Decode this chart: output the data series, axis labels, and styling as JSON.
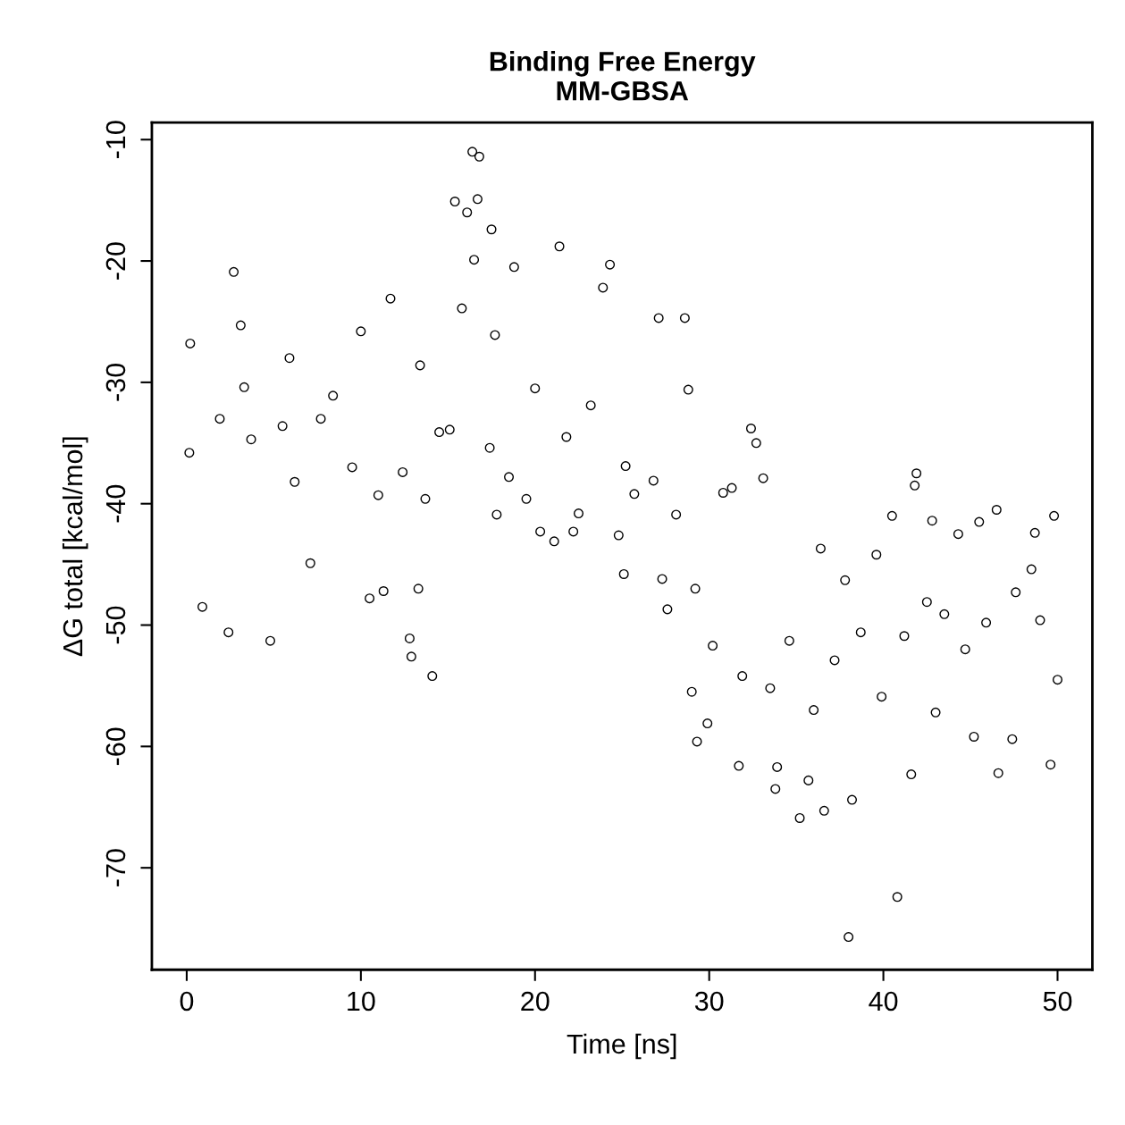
{
  "chart_data": {
    "type": "scatter",
    "title": "Binding Free Energy\nMM-GBSA",
    "xlabel": "Time [ns]",
    "ylabel": "ΔG total [kcal/mol]",
    "xlim": [
      -2,
      52
    ],
    "ylim": [
      -78.4,
      -8.6
    ],
    "xticks": [
      0,
      10,
      20,
      30,
      40,
      50
    ],
    "yticks": [
      -10,
      -20,
      -30,
      -40,
      -50,
      -60,
      -70
    ],
    "grid": false,
    "legend": false,
    "marker": "circle",
    "series": [
      {
        "color": "#000000",
        "x": [
          0.15,
          0.2,
          0.9,
          2.4,
          2.7,
          3.1,
          3.3,
          4.8,
          5.9,
          6.2,
          7.1,
          8.4,
          10.0,
          10.5,
          11.3,
          11.7,
          12.8,
          12.9,
          14.1,
          13.3,
          13.4,
          14.5,
          15.4,
          16.4,
          16.8,
          16.7,
          16.1,
          17.5,
          15.8,
          16.5,
          17.7,
          17.8,
          17.4,
          18.8,
          19.5,
          20.3,
          21.1,
          21.4,
          22.2,
          22.5,
          23.9,
          24.3,
          24.8,
          25.1,
          25.7,
          27.1,
          27.3,
          27.6,
          28.6,
          28.8,
          29.2,
          29.3,
          29.0,
          29.9,
          30.8,
          31.3,
          31.7,
          32.4,
          32.7,
          33.1,
          33.9,
          33.8,
          35.2,
          35.7,
          36.6,
          36.4,
          37.8,
          38.0,
          38.2,
          39.6,
          40.5,
          40.8,
          41.6,
          41.9,
          41.8,
          42.8,
          43.0,
          44.3,
          45.2,
          45.5,
          46.5,
          46.6,
          47.4,
          48.7,
          49.0,
          49.6,
          49.8,
          50.0,
          1.9,
          3.7,
          5.5,
          7.7,
          9.5,
          11.0,
          12.4,
          13.7,
          15.1,
          18.5,
          20.0,
          21.8,
          23.2,
          25.2,
          26.8,
          28.1,
          30.2,
          31.9,
          33.5,
          34.6,
          36.0,
          37.2,
          38.7,
          39.9,
          41.2,
          42.5,
          43.5,
          44.7,
          45.9,
          47.6,
          48.5
        ],
        "values": [
          -35.8,
          -26.8,
          -48.5,
          -50.6,
          -20.9,
          -25.3,
          -30.4,
          -51.3,
          -28.0,
          -38.2,
          -44.9,
          -31.1,
          -25.8,
          -47.8,
          -47.2,
          -23.1,
          -51.1,
          -52.6,
          -54.2,
          -47.0,
          -28.6,
          -34.1,
          -15.1,
          -11.0,
          -11.4,
          -14.9,
          -16.0,
          -17.4,
          -23.9,
          -19.9,
          -26.1,
          -40.9,
          -35.4,
          -20.5,
          -39.6,
          -42.3,
          -43.1,
          -18.8,
          -42.3,
          -40.8,
          -22.2,
          -20.3,
          -42.6,
          -45.8,
          -39.2,
          -24.7,
          -46.2,
          -48.7,
          -24.7,
          -30.6,
          -47.0,
          -59.6,
          -55.5,
          -58.1,
          -39.1,
          -38.7,
          -61.6,
          -33.8,
          -35.0,
          -37.9,
          -61.7,
          -63.5,
          -65.9,
          -62.8,
          -65.3,
          -43.7,
          -46.3,
          -75.7,
          -64.4,
          -44.2,
          -41.0,
          -72.4,
          -62.3,
          -37.5,
          -38.5,
          -41.4,
          -57.2,
          -42.5,
          -59.2,
          -41.5,
          -40.5,
          -62.2,
          -59.4,
          -42.4,
          -49.6,
          -61.5,
          -41.0,
          -54.5,
          -33.0,
          -34.7,
          -33.6,
          -33.0,
          -37.0,
          -39.3,
          -37.4,
          -39.6,
          -33.9,
          -37.8,
          -30.5,
          -34.5,
          -31.9,
          -36.9,
          -38.1,
          -40.9,
          -51.7,
          -54.2,
          -55.2,
          -51.3,
          -57.0,
          -52.9,
          -50.6,
          -55.9,
          -50.9,
          -48.1,
          -49.1,
          -52.0,
          -49.8,
          -47.3,
          -45.4
        ]
      }
    ]
  }
}
